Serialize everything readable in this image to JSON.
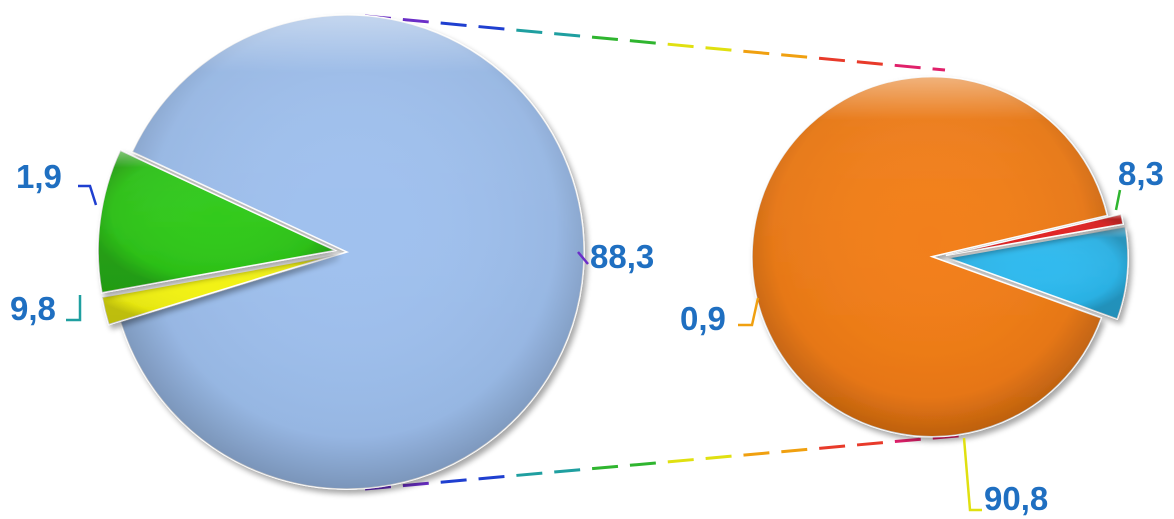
{
  "chart_data": [
    {
      "type": "pie",
      "slices": [
        {
          "value": 88.3,
          "label": "88,3",
          "color": "#9dbfee"
        },
        {
          "value": 1.9,
          "label": "1,9",
          "color": "#f2f20e"
        },
        {
          "value": 9.8,
          "label": "9,8",
          "color": "#2cc816"
        }
      ]
    },
    {
      "type": "pie",
      "slices": [
        {
          "value": 8.3,
          "label": "8,3",
          "color": "#29b8ee"
        },
        {
          "value": 90.8,
          "label": "90,8",
          "color": "#f27b13"
        },
        {
          "value": 0.9,
          "label": "0,9",
          "color": "#e01f1f"
        }
      ]
    }
  ],
  "label_color": "#1f6fc1",
  "connector_colors": [
    "#6b2ec8",
    "#1f3fd0",
    "#1f9fa0",
    "#2fb52f",
    "#e0e010",
    "#f0a010",
    "#e83a2a",
    "#e0206a"
  ],
  "connector_dash_colors": [
    "#6b2ec8",
    "#1f3fd0",
    "#1f9fa0",
    "#2fb52f",
    "#e0e010",
    "#f0a010",
    "#e83a2a",
    "#e0206a"
  ]
}
